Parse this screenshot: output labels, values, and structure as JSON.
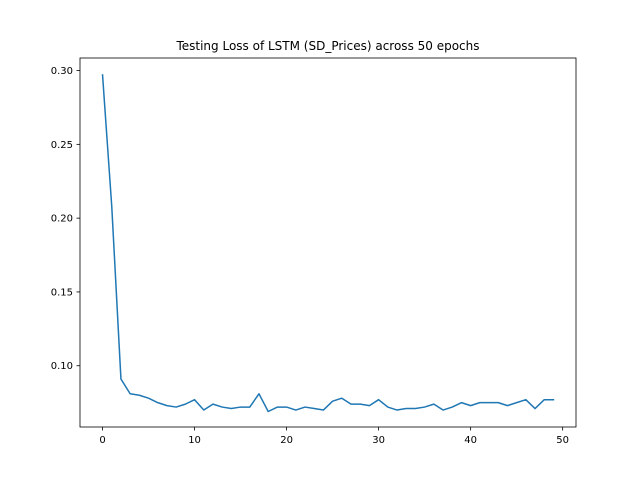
{
  "chart_data": {
    "type": "line",
    "title": "Testing Loss of LSTM (SD_Prices) across 50 epochs",
    "xlabel": "",
    "ylabel": "",
    "xlim": [
      -2.45,
      51.45
    ],
    "ylim": [
      0.0585,
      0.3085
    ],
    "xticks": [
      0,
      10,
      20,
      30,
      40,
      50
    ],
    "xtick_labels": [
      "0",
      "10",
      "20",
      "30",
      "40",
      "50"
    ],
    "yticks": [
      0.1,
      0.15,
      0.2,
      0.25,
      0.3
    ],
    "ytick_labels": [
      "0.10",
      "0.15",
      "0.20",
      "0.25",
      "0.30"
    ],
    "grid": false,
    "series": [
      {
        "color": "#1f77b4",
        "x": [
          0,
          1,
          2,
          3,
          4,
          5,
          6,
          7,
          8,
          9,
          10,
          11,
          12,
          13,
          14,
          15,
          16,
          17,
          18,
          19,
          20,
          21,
          22,
          23,
          24,
          25,
          26,
          27,
          28,
          29,
          30,
          31,
          32,
          33,
          34,
          35,
          36,
          37,
          38,
          39,
          40,
          41,
          42,
          43,
          44,
          45,
          46,
          47,
          48,
          49
        ],
        "values": [
          0.297,
          0.208,
          0.091,
          0.081,
          0.08,
          0.078,
          0.075,
          0.073,
          0.072,
          0.074,
          0.077,
          0.07,
          0.074,
          0.072,
          0.071,
          0.072,
          0.072,
          0.081,
          0.069,
          0.072,
          0.072,
          0.07,
          0.072,
          0.071,
          0.07,
          0.076,
          0.078,
          0.074,
          0.074,
          0.073,
          0.077,
          0.072,
          0.07,
          0.071,
          0.071,
          0.072,
          0.074,
          0.07,
          0.072,
          0.075,
          0.073,
          0.075,
          0.075,
          0.075,
          0.073,
          0.075,
          0.077,
          0.071,
          0.077,
          0.077
        ]
      }
    ]
  }
}
